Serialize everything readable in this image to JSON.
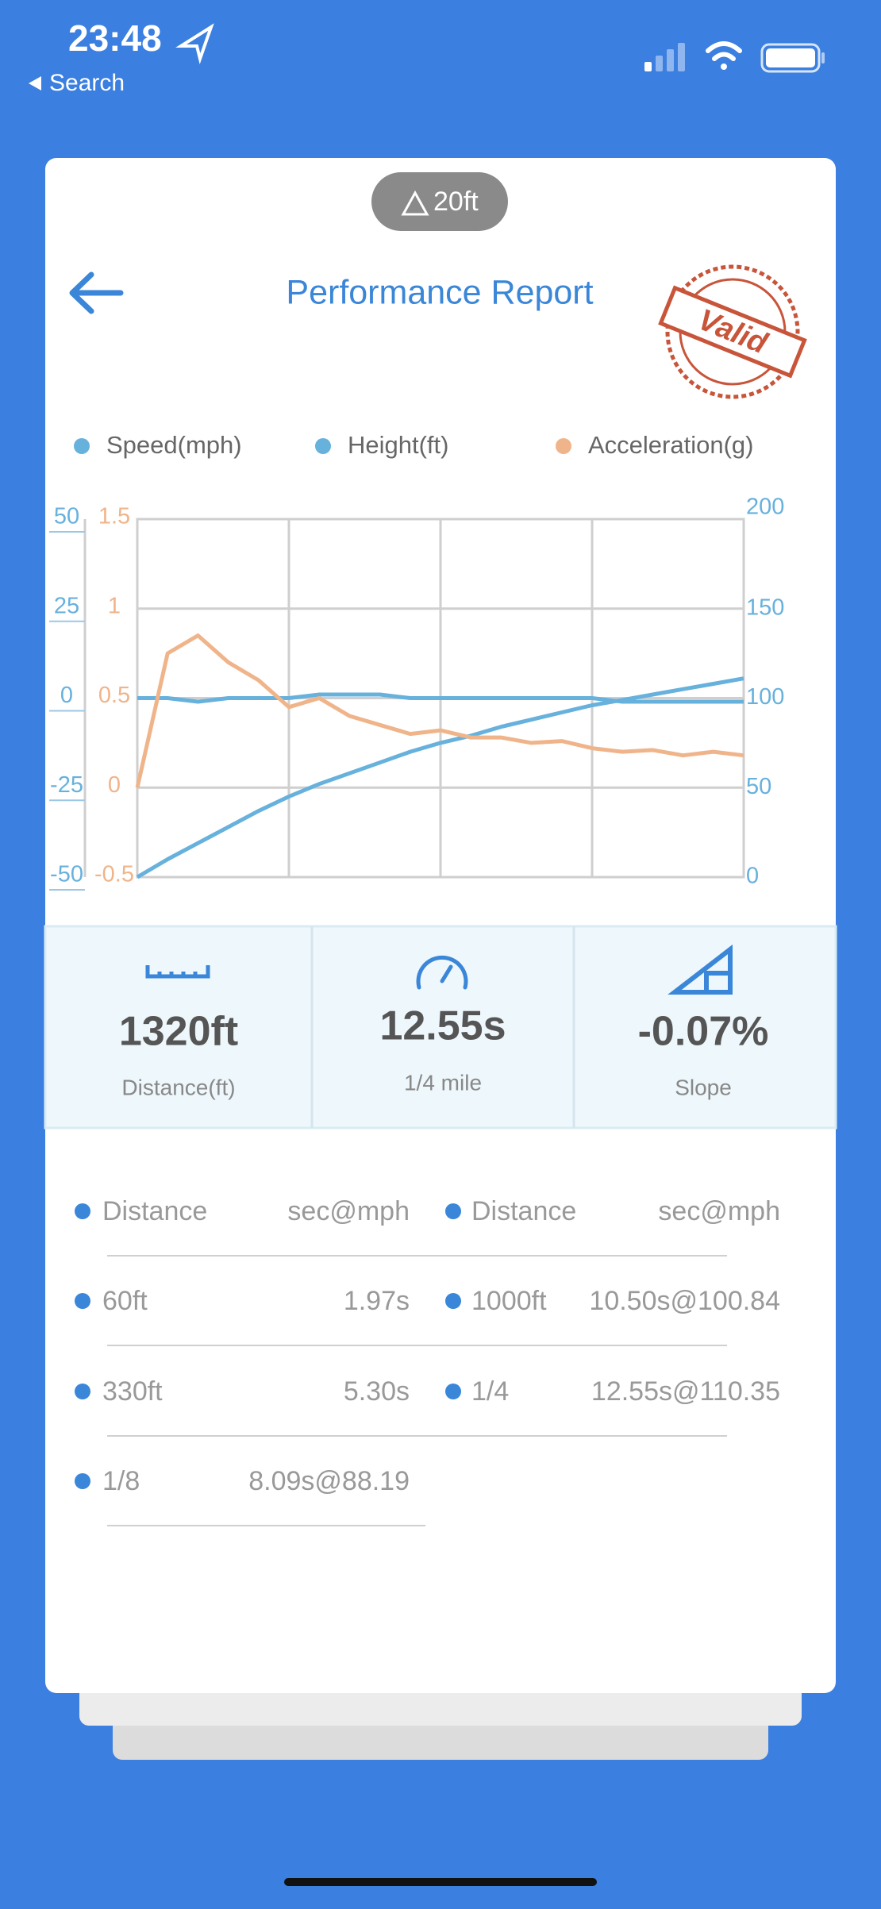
{
  "status_bar": {
    "time": "23:48",
    "back": "Search"
  },
  "badge": "20ft",
  "header": {
    "title": "Performance Report",
    "stamp": "Valid"
  },
  "chart_data": {
    "type": "line",
    "grid": true,
    "series": [
      {
        "name": "Speed(mph)",
        "color": "#67b1dd",
        "axis": "y2",
        "values": [
          0,
          10,
          19,
          28,
          37,
          45,
          52,
          58,
          64,
          70,
          75,
          79,
          84,
          88,
          92,
          96,
          99,
          102,
          105,
          108,
          111
        ]
      },
      {
        "name": "Height(ft)",
        "color": "#67b1dd",
        "values": [
          0,
          0,
          -1,
          0,
          0,
          0,
          1,
          1,
          1,
          0,
          0,
          0,
          0,
          0,
          0,
          0,
          -1,
          -1,
          -1,
          -1,
          -1
        ]
      },
      {
        "name": "Acceleration(g)",
        "color": "#f0b48a",
        "axis": "y3",
        "values": [
          0,
          0.75,
          0.85,
          0.7,
          0.6,
          0.45,
          0.5,
          0.4,
          0.35,
          0.3,
          0.32,
          0.28,
          0.28,
          0.25,
          0.26,
          0.22,
          0.2,
          0.21,
          0.18,
          0.2,
          0.18
        ]
      }
    ],
    "ylim": [
      -50,
      50
    ],
    "yticks": [
      -50,
      -25,
      0,
      25,
      50
    ],
    "y2lim": [
      0,
      200
    ],
    "y2ticks": [
      0,
      50,
      100,
      150,
      200
    ],
    "y3lim": [
      -0.5,
      1.5
    ],
    "y3ticks": [
      -0.5,
      0,
      0.5,
      1,
      1.5
    ]
  },
  "stats": [
    {
      "value": "1320ft",
      "label": "Distance(ft)"
    },
    {
      "value": "12.55s",
      "label": "1/4 mile"
    },
    {
      "value": "-0.07%",
      "label": "Slope"
    }
  ],
  "splits": {
    "left": {
      "header": [
        "Distance",
        "sec@mph"
      ],
      "rows": [
        [
          "60ft",
          "1.97s"
        ],
        [
          "330ft",
          "5.30s"
        ],
        [
          "1/8",
          "8.09s@88.19"
        ]
      ]
    },
    "right": {
      "header": [
        "Distance",
        "sec@mph"
      ],
      "rows": [
        [
          "1000ft",
          "10.50s@100.84"
        ],
        [
          "1/4",
          "12.55s@110.35"
        ]
      ]
    }
  }
}
